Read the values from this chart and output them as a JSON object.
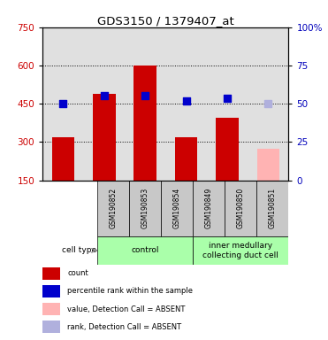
{
  "title": "GDS3150 / 1379407_at",
  "samples": [
    "GSM190852",
    "GSM190853",
    "GSM190854",
    "GSM190849",
    "GSM190850",
    "GSM190851"
  ],
  "bar_values": [
    320,
    490,
    600,
    320,
    395,
    275
  ],
  "bar_colors": [
    "#cc0000",
    "#cc0000",
    "#cc0000",
    "#cc0000",
    "#cc0000",
    "#ffb3b3"
  ],
  "dot_values": [
    450,
    480,
    482,
    460,
    472,
    450
  ],
  "dot_colors": [
    "#0000cc",
    "#0000cc",
    "#0000cc",
    "#0000cc",
    "#0000cc",
    "#b0b0dd"
  ],
  "ylim_left": [
    150,
    750
  ],
  "yticks_left": [
    150,
    300,
    450,
    600,
    750
  ],
  "yticks_right_pct": [
    0,
    25,
    50,
    75,
    100
  ],
  "ytick_labels_right": [
    "0",
    "25",
    "50",
    "75",
    "100%"
  ],
  "grid_values": [
    300,
    450,
    600
  ],
  "group_control": [
    0,
    1,
    2
  ],
  "group_imcd": [
    3,
    4,
    5
  ],
  "group_control_label": "control",
  "group_imcd_label": "inner medullary\ncollecting duct cell",
  "group_color": "#aaffaa",
  "sample_bg": "#c8c8c8",
  "plot_bg": "#e0e0e0",
  "cell_type_label": "cell type",
  "legend_items": [
    {
      "label": "count",
      "color": "#cc0000"
    },
    {
      "label": "percentile rank within the sample",
      "color": "#0000cc"
    },
    {
      "label": "value, Detection Call = ABSENT",
      "color": "#ffb3b3"
    },
    {
      "label": "rank, Detection Call = ABSENT",
      "color": "#b0b0dd"
    }
  ],
  "bar_width": 0.55,
  "base_value": 150,
  "dot_size": 40,
  "left_tick_color": "#cc0000",
  "right_tick_color": "#0000bb"
}
